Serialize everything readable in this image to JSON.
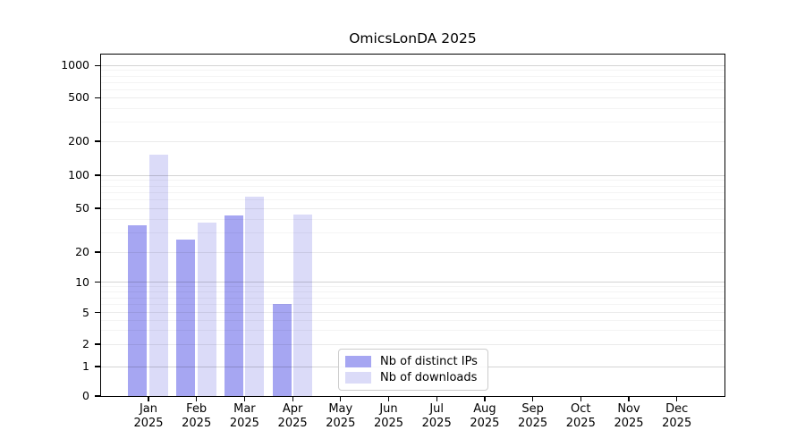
{
  "title": "OmicsLonDA 2025",
  "chart_data": {
    "type": "bar",
    "title": "OmicsLonDA 2025",
    "categories": [
      "Jan 2025",
      "Feb 2025",
      "Mar 2025",
      "Apr 2025",
      "May 2025",
      "Jun 2025",
      "Jul 2025",
      "Aug 2025",
      "Sep 2025",
      "Oct 2025",
      "Nov 2025",
      "Dec 2025"
    ],
    "series": [
      {
        "name": "Nb of distinct IPs",
        "color": "#a6a6f2",
        "values": [
          35,
          26,
          43,
          6,
          0,
          0,
          0,
          0,
          0,
          0,
          0,
          0
        ]
      },
      {
        "name": "Nb of downloads",
        "color": "#dbdbf8",
        "values": [
          150,
          37,
          64,
          44,
          0,
          0,
          0,
          0,
          0,
          0,
          0,
          0
        ]
      }
    ],
    "xlabel": "",
    "ylabel": "",
    "yscale": "log-like with linear segment 0-1",
    "yticks_labeled": [
      0,
      1,
      2,
      5,
      10,
      20,
      50,
      100,
      200,
      500,
      1000
    ],
    "yticks_minor": [
      3,
      4,
      6,
      7,
      8,
      9,
      30,
      40,
      60,
      70,
      80,
      90,
      300,
      400,
      600,
      700,
      800,
      900
    ],
    "ylim": [
      0,
      1300
    ],
    "grid": true,
    "legend_position": "lower center, inside plot"
  }
}
